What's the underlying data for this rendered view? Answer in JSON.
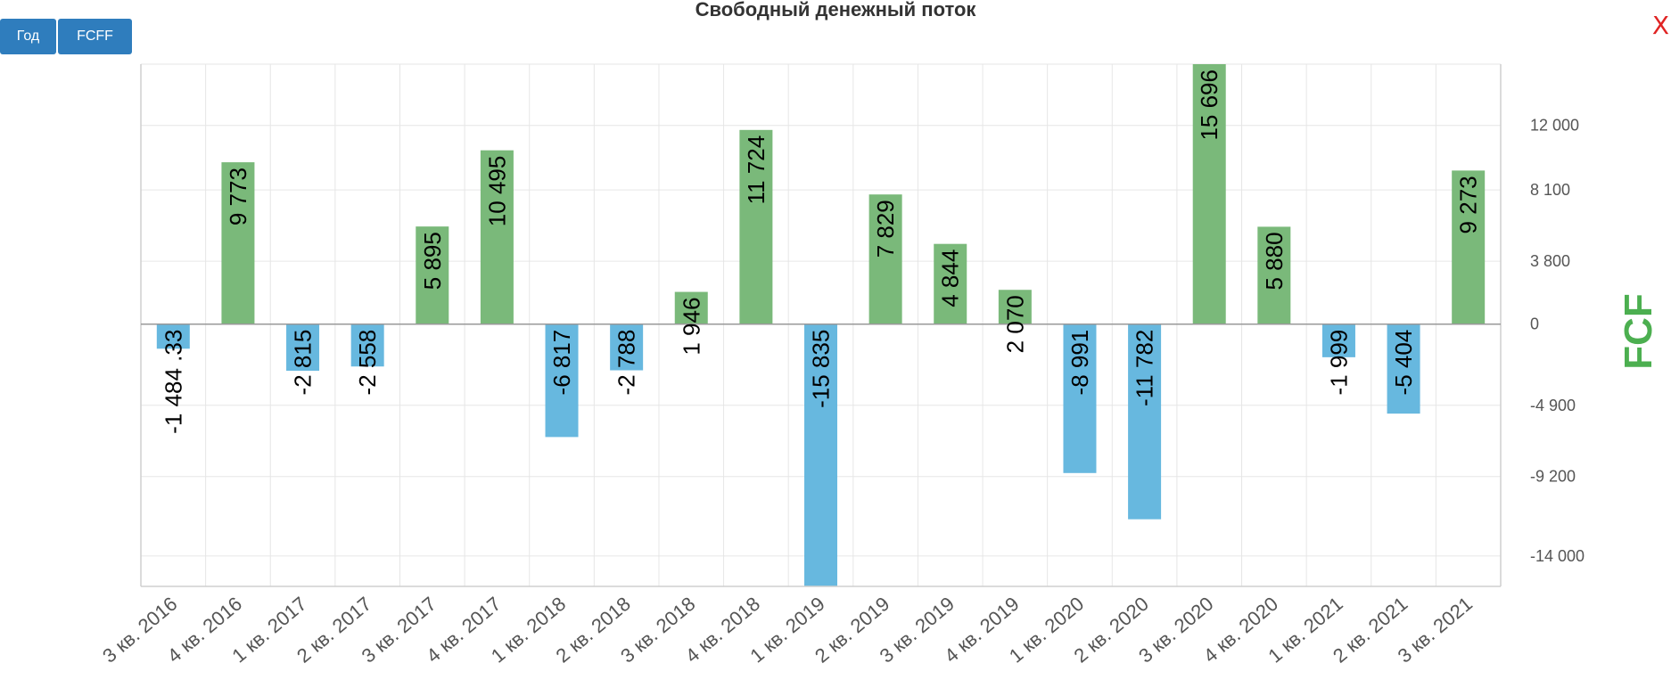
{
  "toolbar": {
    "year_label": "Год",
    "fcff_label": "FCFF"
  },
  "close_label": "X",
  "colors": {
    "positive": "#7ab97a",
    "negative": "#67b8df",
    "axis_title": "#4caf50",
    "button": "#2f7dbd",
    "close": "#e02424"
  },
  "chart_data": {
    "type": "bar",
    "title": "Свободный денежный поток",
    "ylabel": "FCF",
    "xlabel": "",
    "categories": [
      "3 кв. 2016",
      "4 кв. 2016",
      "1 кв. 2017",
      "2 кв. 2017",
      "3 кв. 2017",
      "4 кв. 2017",
      "1 кв. 2018",
      "2 кв. 2018",
      "3 кв. 2018",
      "4 кв. 2018",
      "1 кв. 2019",
      "2 кв. 2019",
      "3 кв. 2019",
      "4 кв. 2019",
      "1 кв. 2020",
      "2 кв. 2020",
      "3 кв. 2020",
      "4 кв. 2020",
      "1 кв. 2021",
      "2 кв. 2021",
      "3 кв. 2021"
    ],
    "values": [
      -1484.33,
      9773,
      -2815,
      -2558,
      5895,
      10495,
      -6817,
      -2788,
      1946,
      11724,
      -15835,
      7829,
      4844,
      2070,
      -8991,
      -11782,
      15696,
      5880,
      -1999,
      -5404,
      9273
    ],
    "value_labels": [
      "-1 484 .33",
      "9 773",
      "-2 815",
      "-2 558",
      "5 895",
      "10 495",
      "-6 817",
      "-2 788",
      "1 946",
      "11 724",
      "-15 835",
      "7 829",
      "4 844",
      "2 070",
      "-8 991",
      "-11 782",
      "15 696",
      "5 880",
      "-1 999",
      "-5 404",
      "9 273"
    ],
    "yticks": [
      12000,
      8100,
      3800,
      0,
      -4900,
      -9200,
      -14000
    ],
    "ytick_labels": [
      "12 000",
      "8 100",
      "3 800",
      "0",
      "-4 900",
      "-9 200",
      "-14 000"
    ],
    "ylim": [
      -15835,
      15696
    ],
    "y_axis_position": "right",
    "grid": true,
    "legend": "none"
  }
}
